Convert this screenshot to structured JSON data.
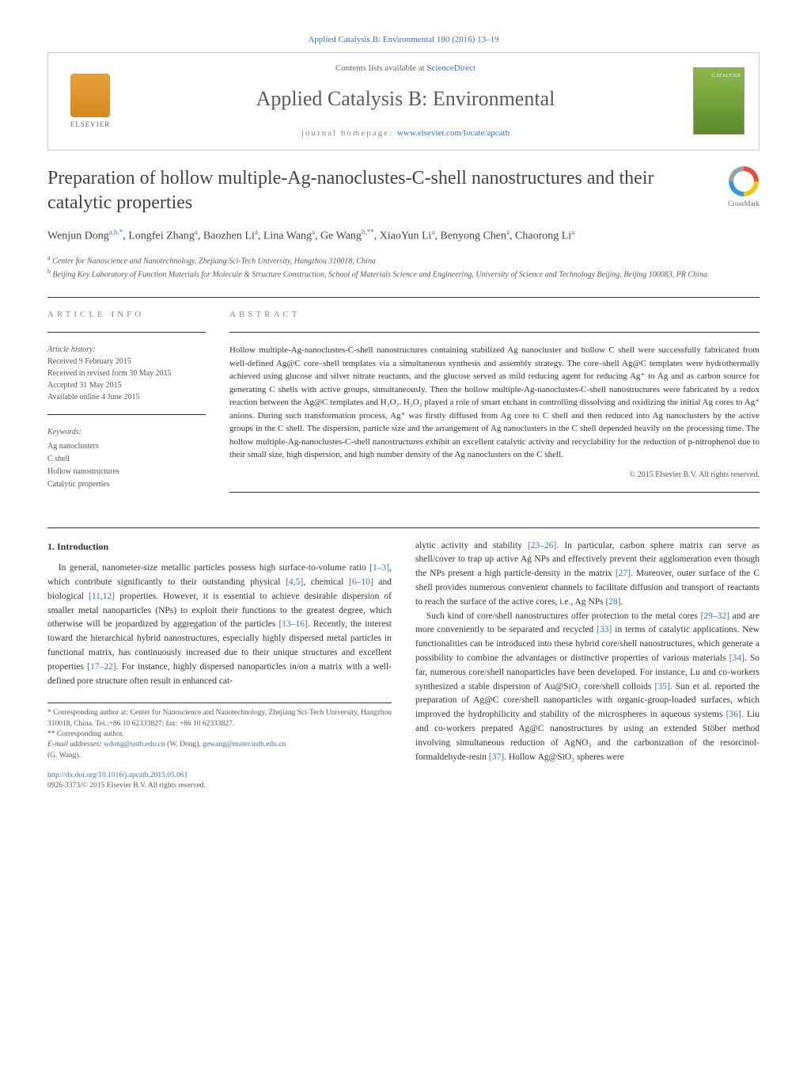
{
  "topLink": {
    "text": "Applied Catalysis B: Environmental 180 (2016) 13–19"
  },
  "header": {
    "elsevierLabel": "ELSEVIER",
    "contentsLine": {
      "prefix": "Contents lists available at ",
      "link": "ScienceDirect"
    },
    "journalName": "Applied Catalysis B: Environmental",
    "homepageLine": {
      "prefix": "journal homepage: ",
      "link": "www.elsevier.com/locate/apcatb"
    }
  },
  "crossmark": {
    "label": "CrossMark"
  },
  "title": "Preparation of hollow multiple-Ag-nanoclustes-C-shell nanostructures and their catalytic properties",
  "authorsHtml": "Wenjun Dong<sup>a,b,*</sup>, Longfei Zhang<sup>a</sup>, Baozhen Li<sup>a</sup>, Lina Wang<sup>a</sup>, Ge Wang<sup>b,**</sup>, XiaoYun Li<sup>a</sup>, Benyong Chen<sup>a</sup>, Chaorong Li<sup>a</sup>",
  "affiliations": [
    {
      "sup": "a",
      "text": "Center for Nanoscience and Nanotechnology, Zhejiang Sci-Tech University, Hangzhou 310018, China"
    },
    {
      "sup": "b",
      "text": "Beijing Key Laboratory of Function Materials for Molecule & Structure Construction, School of Materials Science and Engineering, University of Science and Technology Beijing, Beijing 100083, PR China"
    }
  ],
  "articleInfo": {
    "label": "ARTICLE INFO",
    "historyLabel": "Article history:",
    "history": [
      "Received 9 February 2015",
      "Received in revised form 30 May 2015",
      "Accepted 31 May 2015",
      "Available online 4 June 2015"
    ],
    "keywordsLabel": "Keywords:",
    "keywords": [
      "Ag nanoclusters",
      "C shell",
      "Hollow nanostructures",
      "Catalytic properties"
    ]
  },
  "abstract": {
    "label": "ABSTRACT",
    "text": "Hollow multiple-Ag-nanoclustes-C-shell nanostructures containing stabilized Ag nanocluster and hollow C shell were successfully fabricated from well-defined Ag@C core–shell templates via a simultaneous synthesis and assembly strategy. The core–shell Ag@C templates were hydrothermally achieved using glucose and silver nitrate reactants, and the glucose served as mild reducing agent for reducing Ag⁺ to Ag and as carbon source for generating C shells with active groups, simultaneously. Then the hollow multiple-Ag-nanoclustes-C-shell nanostructures were fabricated by a redox reaction between the Ag@C templates and H₂O₂. H₂O₂ played a role of smart etchant in controlling dissolving and oxidizing the initial Ag cores to Ag⁺ anions. During such transformation process, Ag⁺ was firstly diffused from Ag core to C shell and then reduced into Ag nanoclusters by the active groups in the C shell. The dispersion, particle size and the arrangement of Ag nanoclusters in the C shell depended heavily on the processing time. The hollow multiple-Ag-nanoclustes-C-shell nanostructures exhibit an excellent catalytic activity and recyclability for the reduction of p-nitrophenol due to their small size, high dispersion, and high number density of the Ag nanoclusters on the C shell.",
    "copyright": "© 2015 Elsevier B.V. All rights reserved."
  },
  "body": {
    "introHeading": "1. Introduction",
    "leftCol": {
      "p1": {
        "pre": "In general, nanometer-size metallic particles possess high surface-to-volume ratio ",
        "r1": "[1–3]",
        "mid1": ", which contribute significantly to their outstanding physical ",
        "r2": "[4,5]",
        "mid2": ", chemical ",
        "r3": "[6–10]",
        "mid3": " and biological ",
        "r4": "[11,12]",
        "mid4": " properties. However, it is essential to achieve desirable dispersion of smaller metal nanoparticles (NPs) to exploit their functions to the greatest degree, which otherwise will be jeopardized by aggregation of the particles ",
        "r5": "[13–16]",
        "mid5": ". Recently, the interest toward the hierarchical hybrid nanostructures, especially highly dispersed metal particles in functional matrix, has continuously increased due to their unique structures and excellent properties ",
        "r6": "[17–22]",
        "post": ". For instance, highly dispersed nanoparticles in/on a matrix with a well-defined pore structure often result in enhanced cat-"
      }
    },
    "rightCol": {
      "p1": {
        "pre": "alytic activity and stability ",
        "r1": "[23–26]",
        "mid1": ". In particular, carbon sphere matrix can serve as shell/cover to trap up active Ag NPs and effectively prevent their agglomeration even though the NPs present a high particle-density in the matrix ",
        "r2": "[27]",
        "mid2": ". Moreover, outer surface of the C shell provides numerous convenient channels to facilitate diffusion and transport of reactants to reach the surface of the active cores, i.e., Ag NPs ",
        "r3": "[28]",
        "post": "."
      },
      "p2": {
        "pre": "Such kind of core/shell nanostructures offer protection to the metal cores ",
        "r1": "[29–32]",
        "mid1": " and are more conveniently to be separated and recycled ",
        "r2": "[33]",
        "mid2": " in terms of catalytic applications. New functionalities can be introduced into these hybrid core/shell nanostructures, which generate a possibility to combine the advantages or distinctive properties of various materials ",
        "r3": "[34]",
        "mid3": ". So far, numerous core/shell nanoparticles have been developed. For instance, Lu and co-workers synthesized a stable dispersion of Au@SiO₂ core/shell colloids ",
        "r4": "[35]",
        "mid4": ". Sun et al. reported the preparation of Ag@C core/shell nanoparticles with organic-group-loaded surfaces, which improved the hydrophilicity and stability of the microspheres in aqueous systems ",
        "r5": "[36]",
        "mid5": ". Liu and co-workers prepared Ag@C nanostructures by using an extended Stöber method involving simultaneous reduction of AgNO₃ and the carbonization of the resorcinol-formaldehyde-resin ",
        "r6": "[37]",
        "post": ". Hollow Ag@SiO₂ spheres were"
      }
    }
  },
  "footnotes": {
    "corr1": "* Corresponding author at: Center for Nanoscience and Nanotechnology, Zhejiang Sci-Tech University, Hangzhou 310018, China. Tel.:+86 10 62333827; fax: +86 10 62333827.",
    "corr2": "** Corresponding author.",
    "emailLabel": "E-mail addresses: ",
    "email1": "wdong@ustb.edu.cn",
    "email1sfx": " (W. Dong), ",
    "email2": "gewang@mater.ustb.edu.cn",
    "email2sfx": " (G. Wang)."
  },
  "footer": {
    "doi": "http://dx.doi.org/10.1016/j.apcatb.2015.05.061",
    "issn": "0926-3373/© 2015 Elsevier B.V. All rights reserved."
  },
  "colors": {
    "link": "#3b72b8",
    "text": "#333333",
    "muted": "#888888"
  }
}
